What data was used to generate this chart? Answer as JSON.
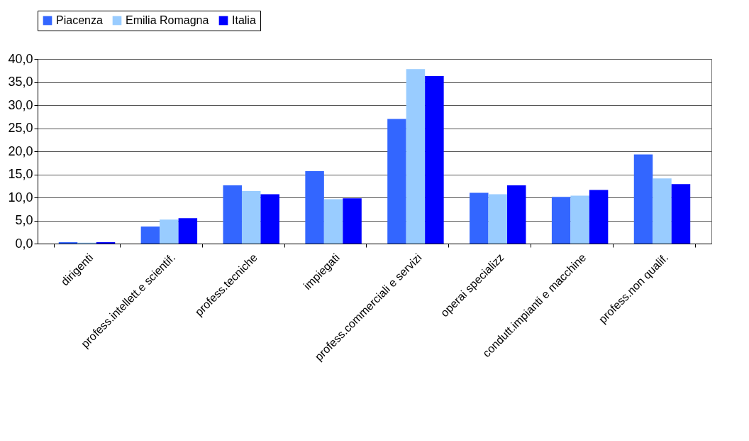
{
  "chart_data": {
    "type": "bar",
    "categories": [
      "dirigenti",
      "profess.intellett.e scientif.",
      "profess.tecniche",
      "impiegati",
      "profess.commerciali e servizi",
      "operai specializz",
      "condutt.impianti e macchine",
      "profess.non qualif."
    ],
    "series": [
      {
        "name": "Piacenza",
        "color": "#3366ff",
        "values": [
          0.3,
          3.7,
          12.6,
          15.7,
          27.0,
          11.0,
          10.1,
          19.3
        ]
      },
      {
        "name": "Emilia Romagna",
        "color": "#99ccff",
        "values": [
          0.2,
          5.2,
          11.4,
          9.6,
          37.8,
          10.7,
          10.4,
          14.1
        ]
      },
      {
        "name": "Italia",
        "color": "#0000ff",
        "values": [
          0.3,
          5.5,
          10.7,
          9.8,
          36.3,
          12.6,
          11.6,
          12.9
        ]
      }
    ],
    "ylim": [
      0,
      40
    ],
    "yticks": [
      {
        "value": 0,
        "label": "0,0"
      },
      {
        "value": 5,
        "label": "5,0"
      },
      {
        "value": 10,
        "label": "10,0"
      },
      {
        "value": 15,
        "label": "15,0"
      },
      {
        "value": 20,
        "label": "20,0"
      },
      {
        "value": 25,
        "label": "25,0"
      },
      {
        "value": 30,
        "label": "30,0"
      },
      {
        "value": 35,
        "label": "35,0"
      },
      {
        "value": 40,
        "label": "40,0"
      }
    ],
    "grid": "y",
    "legend": "top"
  }
}
